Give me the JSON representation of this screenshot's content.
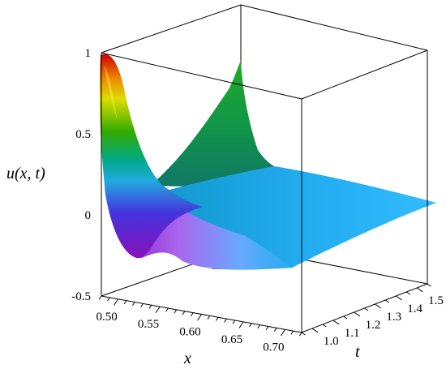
{
  "chart_data": {
    "type": "surface",
    "title": "",
    "xlabel": "x",
    "ylabel": "t",
    "zlabel": "u(x, t)",
    "x_ticks": [
      "0.50",
      "0.55",
      "0.60",
      "0.65",
      "0.70"
    ],
    "t_ticks": [
      "1.0",
      "1.1",
      "1.2",
      "1.3",
      "1.4",
      "1.5"
    ],
    "z_ticks": [
      "1",
      "0.5",
      "0",
      "-0.5"
    ],
    "x_range": [
      0.48,
      0.72
    ],
    "t_range": [
      0.95,
      1.55
    ],
    "z_range": [
      -0.5,
      1
    ],
    "boxed": true,
    "colormap": [
      "#cc0000",
      "#ee8800",
      "#dddd00",
      "#33aa00",
      "#00aa55",
      "#22aadd",
      "#4433dd",
      "#8811bb",
      "#cc66ff",
      "#00ccff"
    ]
  }
}
